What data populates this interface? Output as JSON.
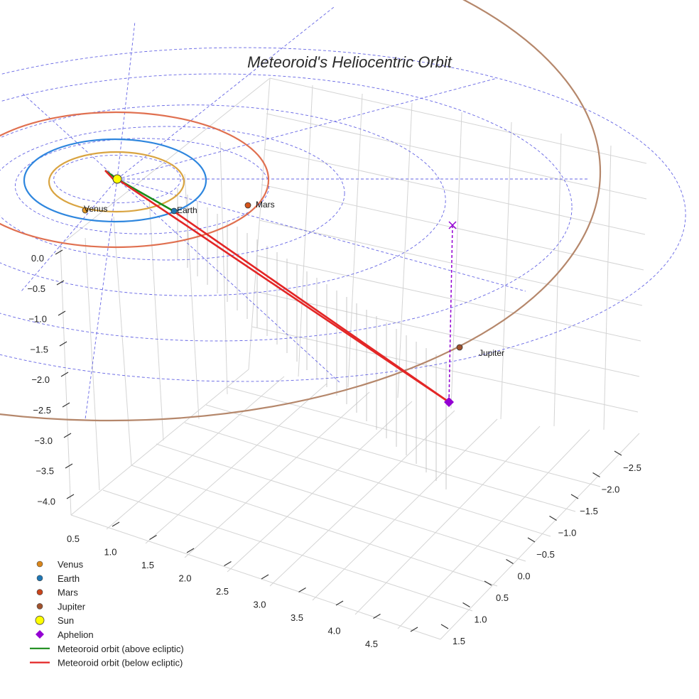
{
  "chart_data": {
    "type": "3d-orbit",
    "title": "Meteoroid's Heliocentric Orbit",
    "z_axis": {
      "ticks": [
        "0.0",
        "−0.5",
        "−1.0",
        "−1.5",
        "−2.0",
        "−2.5",
        "−3.0",
        "−3.5",
        "−4.0"
      ]
    },
    "x_axis": {
      "ticks": [
        "0.5",
        "1.0",
        "1.5",
        "2.0",
        "2.5",
        "3.0",
        "3.5",
        "4.0",
        "4.5"
      ]
    },
    "y_axis": {
      "ticks": [
        "−2.5",
        "−2.0",
        "−1.5",
        "−1.0",
        "−0.5",
        "0.0",
        "0.5",
        "1.0",
        "1.5"
      ]
    },
    "planets": [
      {
        "name": "Venus",
        "color": "#e69b28",
        "orbit_color": "#d9a441",
        "semi_major_au": 0.72
      },
      {
        "name": "Earth",
        "color": "#1f77b4",
        "orbit_color": "#2e86de",
        "semi_major_au": 1.0
      },
      {
        "name": "Mars",
        "color": "#d4541b",
        "orbit_color": "#e07050",
        "semi_major_au": 1.52
      },
      {
        "name": "Jupiter",
        "color": "#a0522d",
        "orbit_color": "#b5876b",
        "semi_major_au": 5.2
      }
    ],
    "sun": {
      "name": "Sun",
      "color": "#ffff00"
    },
    "aphelion": {
      "name": "Aphelion",
      "color": "#9400d3"
    },
    "series": [
      {
        "name": "Meteoroid orbit (above ecliptic)",
        "color": "#1a8c1a"
      },
      {
        "name": "Meteoroid orbit (below ecliptic)",
        "color": "#e32626"
      }
    ],
    "legend": [
      {
        "label": "Venus",
        "kind": "dot",
        "color": "#d9861c"
      },
      {
        "label": "Earth",
        "kind": "dot",
        "color": "#1f77b4"
      },
      {
        "label": "Mars",
        "kind": "dot",
        "color": "#c8441b"
      },
      {
        "label": "Jupiter",
        "kind": "dot",
        "color": "#a0522d"
      },
      {
        "label": "Sun",
        "kind": "sun",
        "color": "#ffff00"
      },
      {
        "label": "Aphelion",
        "kind": "diamond",
        "color": "#9400d3"
      },
      {
        "label": "Meteoroid orbit (above ecliptic)",
        "kind": "line",
        "color": "#1a8c1a"
      },
      {
        "label": "Meteoroid orbit (below ecliptic)",
        "kind": "line",
        "color": "#e32626"
      }
    ],
    "legend_position": "bottom-left"
  }
}
